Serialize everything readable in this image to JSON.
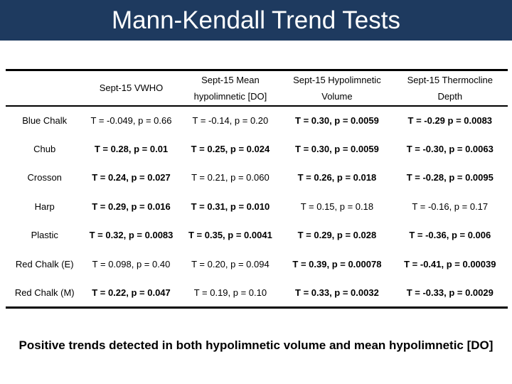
{
  "slide": {
    "title": "Mann-Kendall Trend Tests",
    "conclusion": "Positive trends detected in both hypolimnetic volume and mean hypolimnetic [DO]"
  },
  "colors": {
    "banner_bg": "#1e3a5f",
    "title_text": "#ffffff",
    "table_line": "#000000",
    "table_text": "#000000",
    "conclusion_text": "#000000",
    "slide_bg": "#ffffff"
  },
  "table": {
    "headers": [
      {
        "line1": "",
        "line2": ""
      },
      {
        "line1": "Sept-15 VWHO",
        "line2": ""
      },
      {
        "line1": "Sept-15 Mean",
        "line2": "hypolimnetic [DO]"
      },
      {
        "line1": "Sept-15 Hypolimnetic",
        "line2": "Volume"
      },
      {
        "line1": "Sept-15 Thermocline",
        "line2": "Depth"
      }
    ],
    "rows": [
      {
        "lake": "Blue Chalk",
        "cells": [
          {
            "text": "T = -0.049, p = 0.66",
            "bold": false
          },
          {
            "text": "T = -0.14, p = 0.20",
            "bold": false
          },
          {
            "text": "T = 0.30, p = 0.0059",
            "bold": true
          },
          {
            "text": "T = -0.29 p = 0.0083",
            "bold": true
          }
        ]
      },
      {
        "lake": "Chub",
        "cells": [
          {
            "text": "T = 0.28, p = 0.01",
            "bold": true
          },
          {
            "text": "T = 0.25, p = 0.024",
            "bold": true
          },
          {
            "text": "T = 0.30, p = 0.0059",
            "bold": true
          },
          {
            "text": "T = -0.30, p = 0.0063",
            "bold": true
          }
        ]
      },
      {
        "lake": "Crosson",
        "cells": [
          {
            "text": "T = 0.24, p = 0.027",
            "bold": true
          },
          {
            "text": "T = 0.21, p = 0.060",
            "bold": false
          },
          {
            "text": "T = 0.26, p = 0.018",
            "bold": true
          },
          {
            "text": "T = -0.28, p = 0.0095",
            "bold": true
          }
        ]
      },
      {
        "lake": "Harp",
        "cells": [
          {
            "text": "T = 0.29, p = 0.016",
            "bold": true
          },
          {
            "text": "T = 0.31, p = 0.010",
            "bold": true
          },
          {
            "text": "T = 0.15, p = 0.18",
            "bold": false
          },
          {
            "text": "T = -0.16, p = 0.17",
            "bold": false
          }
        ]
      },
      {
        "lake": "Plastic",
        "cells": [
          {
            "text": "T = 0.32, p = 0.0083",
            "bold": true
          },
          {
            "text": "T = 0.35, p = 0.0041",
            "bold": true
          },
          {
            "text": "T = 0.29, p = 0.028",
            "bold": true
          },
          {
            "text": "T = -0.36, p = 0.006",
            "bold": true
          }
        ]
      },
      {
        "lake": "Red Chalk (E)",
        "cells": [
          {
            "text": "T = 0.098, p = 0.40",
            "bold": false
          },
          {
            "text": "T = 0.20, p = 0.094",
            "bold": false
          },
          {
            "text": "T = 0.39, p = 0.00078",
            "bold": true
          },
          {
            "text": "T = -0.41, p = 0.00039",
            "bold": true
          }
        ]
      },
      {
        "lake": "Red Chalk (M)",
        "cells": [
          {
            "text": "T = 0.22, p = 0.047",
            "bold": true
          },
          {
            "text": "T = 0.19, p = 0.10",
            "bold": false
          },
          {
            "text": "T = 0.33, p = 0.0032",
            "bold": true
          },
          {
            "text": "T = -0.33, p = 0.0029",
            "bold": true
          }
        ]
      }
    ]
  }
}
